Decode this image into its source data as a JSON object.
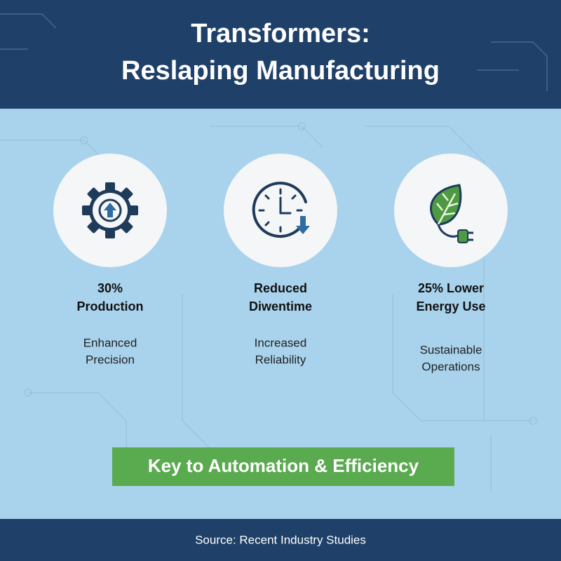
{
  "header": {
    "title_lines": [
      "Transformers:",
      "Reslaping Manufacturing"
    ]
  },
  "items": [
    {
      "heading_lines": [
        "30%",
        "Production"
      ],
      "caption_lines": [
        "Enhanced",
        "Precision"
      ]
    },
    {
      "heading_lines": [
        "Reduced",
        "Diwentime"
      ],
      "caption_lines": [
        "Increased",
        "Reliability"
      ]
    },
    {
      "heading_lines": [
        "25% Lower",
        "Energy Use"
      ],
      "caption_lines": [
        "Sustainable",
        "Operations"
      ]
    }
  ],
  "banner": {
    "text": "Key to Automation & Efficiency"
  },
  "footer": {
    "source": "Source: Recent Industry Studies"
  }
}
